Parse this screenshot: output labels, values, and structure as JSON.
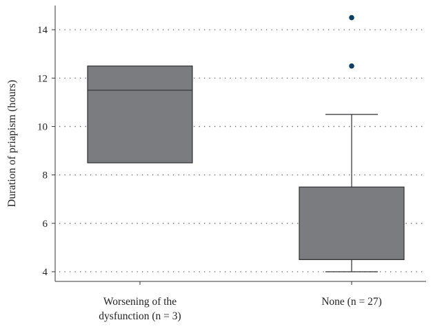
{
  "chart_data": {
    "type": "box",
    "title": "",
    "ylabel": "Duration of priapism (hours)",
    "xlabel": "",
    "ylim": [
      3.6,
      15
    ],
    "yticks": [
      4,
      6,
      8,
      10,
      12,
      14
    ],
    "grid": "horizontal-dotted",
    "categories": [
      {
        "lines": [
          "Worsening of the",
          "dysfunction (n = 3)"
        ]
      },
      {
        "lines": [
          "None (n = 27)"
        ]
      }
    ],
    "boxes": [
      {
        "q1": 8.5,
        "median": 11.5,
        "q3": 12.5,
        "whisker_low": null,
        "whisker_high": null,
        "outliers": []
      },
      {
        "q1": 4.5,
        "median": 4.5,
        "q3": 7.5,
        "whisker_low": 4,
        "whisker_high": 10.5,
        "outliers": [
          12.5,
          14.5
        ]
      }
    ],
    "colors": {
      "box_fill": "#7b7c80",
      "box_stroke": "#2f2f33",
      "outlier": "#0d3f63",
      "grid": "#5a5a5a",
      "axis": "#333333"
    }
  }
}
